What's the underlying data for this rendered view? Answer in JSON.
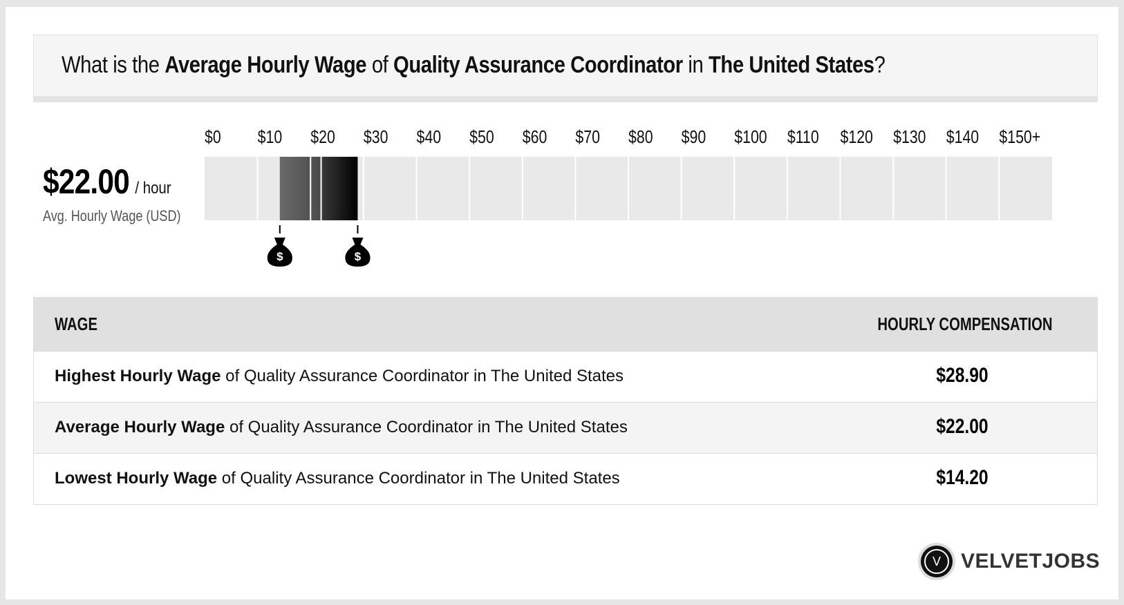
{
  "question": {
    "pre": "What is the ",
    "metric": "Average Hourly Wage",
    "of": " of ",
    "job": "Quality Assurance Coordinator",
    "in": " in ",
    "location": "The United States",
    "end": "?"
  },
  "average": {
    "value": "$22.00",
    "unit": "/ hour",
    "label": "Avg. Hourly Wage (USD)"
  },
  "chart_data": {
    "type": "bar",
    "tick_labels": [
      "$0",
      "$10",
      "$20",
      "$30",
      "$40",
      "$50",
      "$60",
      "$70",
      "$80",
      "$90",
      "$100",
      "$110",
      "$120",
      "$130",
      "$140",
      "$150+"
    ],
    "range_low": 14.2,
    "range_high": 28.9,
    "average": 22.0,
    "xlim": [
      0,
      160
    ]
  },
  "table": {
    "headers": {
      "left": "WAGE",
      "right": "HOURLY COMPENSATION"
    },
    "rows": [
      {
        "bold": "Highest Hourly Wage",
        "rest": " of Quality Assurance Coordinator in The United States",
        "value": "$28.90"
      },
      {
        "bold": "Average Hourly Wage",
        "rest": " of Quality Assurance Coordinator in The United States",
        "value": "$22.00"
      },
      {
        "bold": "Lowest Hourly Wage",
        "rest": " of Quality Assurance Coordinator in The United States",
        "value": "$14.20"
      }
    ]
  },
  "logo": {
    "icon_letter": "V",
    "text": "VELVETJOBS"
  },
  "colors": {
    "track": "#e9e9e9",
    "low_segment": "#5a5a5a",
    "high_segment": "#111111",
    "marker": "#000000"
  }
}
